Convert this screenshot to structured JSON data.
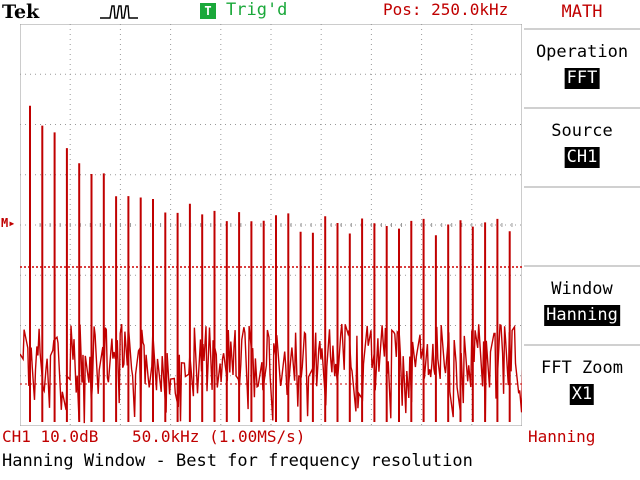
{
  "topbar": {
    "brand": "Tek",
    "acq_icon": "pulse-acquire-icon",
    "trigger_badge": "T",
    "trigger_status": "Trig'd",
    "position": "Pos: 250.0kHz"
  },
  "screen": {
    "marker": "M▸",
    "trigger_marker_icon": "trigger-position-arrow-icon"
  },
  "menu": {
    "title": "MATH",
    "items": [
      {
        "label": "Operation",
        "value": "FFT"
      },
      {
        "label": "Source",
        "value": "CH1"
      },
      {
        "label": "",
        "value": ""
      },
      {
        "label": "Window",
        "value": "Hanning"
      },
      {
        "label": "FFT Zoom",
        "value": "X1"
      }
    ]
  },
  "status": {
    "scale": "CH1 10.0dB",
    "span": "50.0kHz (1.00MS/s)",
    "window": "Hanning",
    "help": "Hanning Window - Best for frequency resolution"
  },
  "colors": {
    "trace": "#c00000",
    "grid": "#cc0000",
    "trigger": "#1aa83a"
  }
}
